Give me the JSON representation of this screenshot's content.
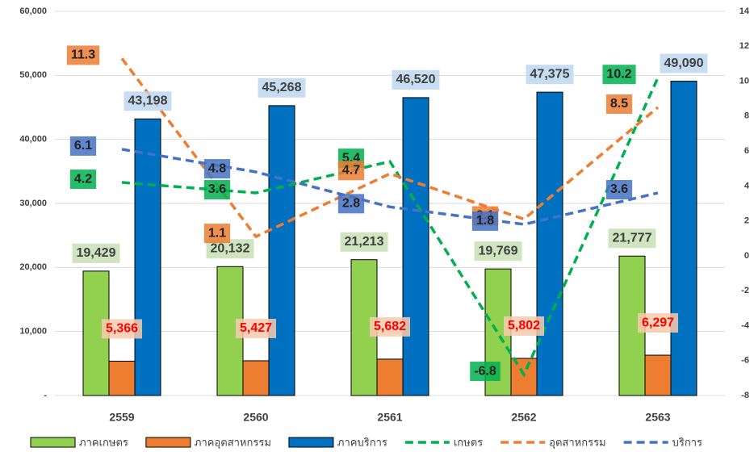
{
  "chart_data": {
    "type": "bar",
    "categories": [
      "2559",
      "2560",
      "2561",
      "2562",
      "2563"
    ],
    "ylim": [
      0,
      60000
    ],
    "yticks": [
      {
        "value": 0,
        "label": "-"
      },
      {
        "value": 10000,
        "label": "10,000"
      },
      {
        "value": 20000,
        "label": "20,000"
      },
      {
        "value": 30000,
        "label": "30,000"
      },
      {
        "value": 40000,
        "label": "40,000"
      },
      {
        "value": 50000,
        "label": "50,000"
      },
      {
        "value": 60000,
        "label": "60,000"
      }
    ],
    "y2lim": [
      -8,
      14
    ],
    "y2ticks": [
      -8,
      -6,
      -4,
      -2,
      0,
      2,
      4,
      6,
      8,
      10,
      12,
      14
    ],
    "grid": true,
    "legend": "bottom",
    "series": [
      {
        "name": "ภาคเกษตร",
        "type": "bar",
        "color": "#92d050",
        "values": [
          19429,
          20132,
          21213,
          19769,
          21777
        ],
        "value_labels": [
          "19,429",
          "20,132",
          "21,213",
          "19,769",
          "21,777"
        ]
      },
      {
        "name": "ภาคอุตสาหกรรม",
        "type": "bar",
        "color": "#ed7d31",
        "values": [
          5366,
          5427,
          5682,
          5802,
          6297
        ],
        "value_labels": [
          "5,366",
          "5,427",
          "5,682",
          "5,802",
          "6,297"
        ]
      },
      {
        "name": "ภาคบริการ",
        "type": "bar",
        "color": "#0070c0",
        "values": [
          43198,
          45268,
          46520,
          47375,
          49090
        ],
        "value_labels": [
          "43,198",
          "45,268",
          "46,520",
          "47,375",
          "49,090"
        ]
      },
      {
        "name": "เกษตร",
        "type": "line",
        "axis": "y2",
        "color": "#00b050",
        "values": [
          4.2,
          3.6,
          5.4,
          -6.8,
          10.2
        ]
      },
      {
        "name": "อุตสาหกรรม",
        "type": "line",
        "axis": "y2",
        "color": "#ed7d31",
        "values": [
          11.3,
          1.1,
          4.7,
          2.1,
          8.5
        ]
      },
      {
        "name": "บริการ",
        "type": "line",
        "axis": "y2",
        "color": "#4472c4",
        "values": [
          6.1,
          4.8,
          2.8,
          1.8,
          3.6
        ]
      }
    ]
  }
}
